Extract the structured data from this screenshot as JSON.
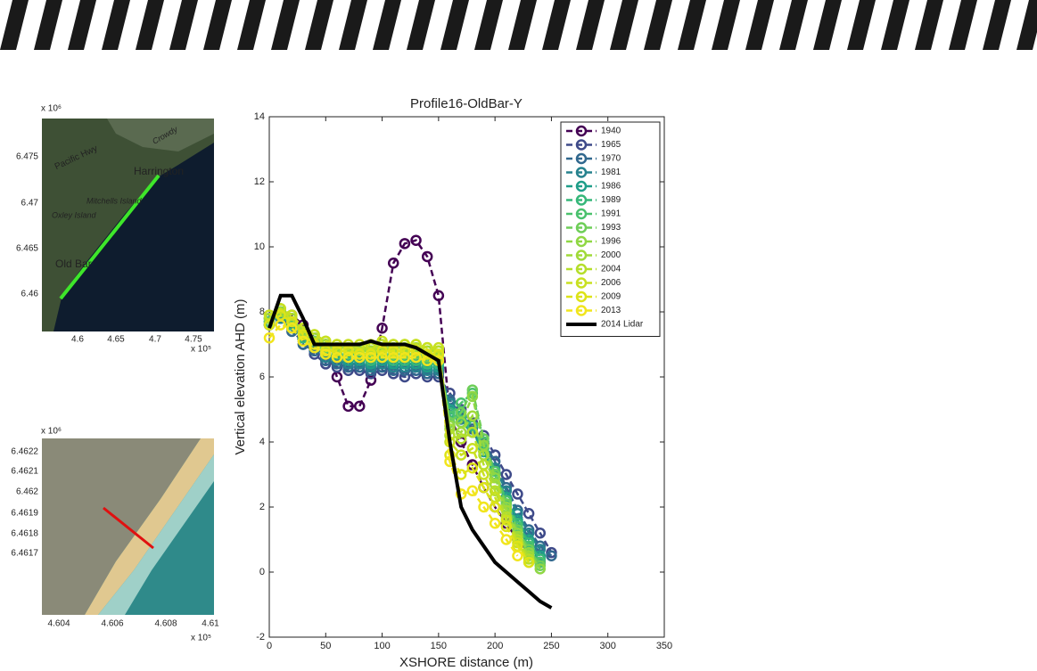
{
  "chart_data": {
    "type": "line",
    "title": "Profile16-OldBar-Y",
    "x_label": "XSHORE distance (m)",
    "y_label": "Vertical elevation AHD (m)",
    "x": [
      0,
      10,
      20,
      30,
      40,
      50,
      60,
      70,
      80,
      90,
      100,
      110,
      120,
      130,
      140,
      150,
      160,
      170,
      180,
      190,
      200,
      210,
      220,
      230,
      240,
      250
    ],
    "xlim": [
      0,
      350
    ],
    "xticks": [
      0,
      50,
      100,
      150,
      200,
      250,
      300,
      350
    ],
    "ylim": [
      -2,
      14
    ],
    "yticks": [
      -2,
      0,
      2,
      4,
      6,
      8,
      10,
      12,
      14
    ],
    "legend": "upper right",
    "series": [
      {
        "name": "1940",
        "color": "#440154",
        "values": [
          7.8,
          8.0,
          7.9,
          7.6,
          7.2,
          7.0,
          6.0,
          5.1,
          5.1,
          5.9,
          7.5,
          9.5,
          10.1,
          10.2,
          9.7,
          8.5,
          4.8,
          4.0,
          3.3,
          2.6,
          2.0,
          1.5,
          1.0,
          0.6,
          0.3,
          null
        ]
      },
      {
        "name": "1965",
        "color": "#3e4a89",
        "values": [
          7.7,
          7.9,
          7.5,
          7.0,
          6.7,
          6.4,
          6.3,
          6.2,
          6.2,
          6.1,
          6.2,
          6.1,
          6.0,
          6.1,
          6.0,
          6.0,
          5.5,
          5.0,
          4.6,
          4.2,
          3.6,
          3.0,
          2.4,
          1.8,
          1.2,
          0.6
        ]
      },
      {
        "name": "1970",
        "color": "#31688e",
        "values": [
          7.6,
          7.8,
          7.4,
          7.0,
          6.8,
          6.5,
          6.4,
          6.3,
          6.3,
          6.2,
          6.3,
          6.2,
          6.2,
          6.2,
          6.1,
          6.1,
          5.3,
          4.8,
          4.4,
          4.0,
          3.4,
          2.6,
          1.9,
          1.3,
          0.8,
          0.5
        ]
      },
      {
        "name": "1981",
        "color": "#26828e",
        "values": [
          7.6,
          7.8,
          7.5,
          7.1,
          6.9,
          6.6,
          6.5,
          6.4,
          6.4,
          6.3,
          6.4,
          6.3,
          6.3,
          6.3,
          6.2,
          6.2,
          5.2,
          4.7,
          4.3,
          3.8,
          3.2,
          2.5,
          1.8,
          1.2,
          0.7,
          null
        ]
      },
      {
        "name": "1986",
        "color": "#1f9e89",
        "values": [
          7.6,
          7.9,
          7.6,
          7.2,
          7.0,
          6.7,
          6.6,
          6.5,
          6.5,
          6.4,
          6.5,
          6.4,
          6.4,
          6.4,
          6.3,
          6.3,
          5.0,
          4.6,
          4.3,
          3.7,
          3.0,
          2.3,
          1.6,
          1.0,
          0.5,
          null
        ]
      },
      {
        "name": "1989",
        "color": "#35b779",
        "values": [
          7.7,
          7.9,
          7.6,
          7.2,
          7.0,
          6.8,
          6.7,
          6.6,
          6.6,
          6.5,
          6.6,
          6.5,
          6.5,
          6.5,
          6.4,
          6.4,
          4.9,
          4.8,
          4.5,
          3.8,
          3.0,
          2.2,
          1.5,
          0.9,
          0.4,
          null
        ]
      },
      {
        "name": "1991",
        "color": "#4ac16d",
        "values": [
          7.7,
          7.9,
          7.7,
          7.3,
          7.1,
          6.9,
          6.8,
          6.7,
          6.7,
          6.6,
          6.7,
          6.6,
          6.6,
          6.6,
          6.5,
          6.5,
          4.8,
          5.2,
          5.5,
          4.0,
          3.1,
          2.2,
          1.4,
          0.8,
          0.3,
          null
        ]
      },
      {
        "name": "1993",
        "color": "#6ece58",
        "values": [
          7.8,
          8.0,
          7.7,
          7.3,
          7.1,
          6.9,
          6.8,
          6.8,
          6.7,
          6.7,
          6.8,
          6.7,
          6.7,
          6.7,
          6.6,
          6.6,
          4.6,
          4.9,
          5.6,
          4.1,
          3.0,
          2.1,
          1.3,
          0.7,
          0.2,
          null
        ]
      },
      {
        "name": "1996",
        "color": "#8fd744",
        "values": [
          7.8,
          8.0,
          7.8,
          7.4,
          7.2,
          7.0,
          6.9,
          6.8,
          6.8,
          6.8,
          6.9,
          6.8,
          6.8,
          6.8,
          6.7,
          6.7,
          4.5,
          4.6,
          5.4,
          3.9,
          2.9,
          2.0,
          1.2,
          0.6,
          0.1,
          null
        ]
      },
      {
        "name": "2000",
        "color": "#a0da39",
        "values": [
          7.8,
          8.1,
          7.8,
          7.4,
          7.2,
          7.0,
          6.9,
          6.9,
          6.9,
          6.8,
          6.9,
          6.9,
          6.9,
          6.9,
          6.8,
          6.8,
          4.4,
          4.3,
          4.8,
          3.6,
          2.7,
          1.9,
          1.1,
          0.5,
          null,
          null
        ]
      },
      {
        "name": "2004",
        "color": "#b5de2b",
        "values": [
          7.9,
          8.1,
          7.9,
          7.5,
          7.3,
          7.1,
          7.0,
          6.9,
          6.9,
          6.9,
          7.0,
          7.0,
          7.0,
          7.0,
          6.9,
          6.8,
          4.2,
          4.1,
          4.3,
          3.3,
          2.5,
          1.7,
          1.0,
          0.4,
          null,
          null
        ]
      },
      {
        "name": "2006",
        "color": "#c8e020",
        "values": [
          7.9,
          8.1,
          7.9,
          7.5,
          7.3,
          7.1,
          7.0,
          7.0,
          7.0,
          7.0,
          7.1,
          7.0,
          7.0,
          7.0,
          6.9,
          6.9,
          4.0,
          3.6,
          3.8,
          3.0,
          2.3,
          1.6,
          0.9,
          0.3,
          null,
          null
        ]
      },
      {
        "name": "2009",
        "color": "#dde318",
        "values": [
          7.6,
          7.9,
          7.7,
          7.3,
          7.0,
          6.8,
          6.8,
          6.8,
          6.7,
          6.7,
          6.8,
          6.8,
          6.8,
          6.8,
          6.7,
          6.7,
          3.6,
          3.0,
          3.2,
          2.6,
          2.0,
          1.4,
          0.8,
          0.3,
          null,
          null
        ]
      },
      {
        "name": "2013",
        "color": "#f1e51d",
        "values": [
          7.2,
          7.6,
          7.5,
          7.1,
          6.9,
          6.7,
          6.6,
          6.6,
          6.6,
          6.6,
          6.6,
          6.6,
          6.6,
          6.6,
          6.5,
          6.5,
          3.4,
          2.4,
          2.5,
          2.0,
          1.5,
          1.0,
          0.5,
          null,
          null,
          null
        ]
      },
      {
        "name": "2014 Lidar",
        "color": "#000000",
        "style": "solid",
        "values": [
          7.5,
          8.5,
          8.5,
          7.8,
          7.0,
          7.0,
          7.0,
          7.0,
          7.0,
          7.1,
          7.0,
          7.0,
          7.0,
          6.9,
          6.7,
          6.5,
          4.0,
          2.0,
          1.3,
          0.8,
          0.3,
          0.0,
          -0.3,
          -0.6,
          -0.9,
          -1.1
        ]
      }
    ]
  },
  "insets": [
    {
      "multiplier_y": "x 10⁶",
      "multiplier_x": "x 10⁵",
      "yticks": [
        "6.475",
        "6.47",
        "6.465",
        "6.46"
      ],
      "xticks": [
        "4.6",
        "4.65",
        "4.7",
        "4.75"
      ],
      "labels": [
        "Pacific Hwy",
        "Harrington",
        "Mitchells Island",
        "Oxley Island",
        "Old Bar",
        "Crowdy"
      ]
    },
    {
      "multiplier_y": "x 10⁶",
      "multiplier_x": "x 10⁵",
      "yticks": [
        "6.4622",
        "6.4621",
        "6.462",
        "6.4619",
        "6.4618",
        "6.4617"
      ],
      "xticks": [
        "4.604",
        "4.606",
        "4.608",
        "4.61"
      ]
    }
  ]
}
